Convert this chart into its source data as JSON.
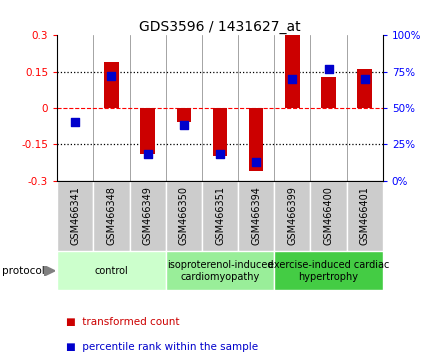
{
  "title": "GDS3596 / 1431627_at",
  "samples": [
    "GSM466341",
    "GSM466348",
    "GSM466349",
    "GSM466350",
    "GSM466351",
    "GSM466394",
    "GSM466399",
    "GSM466400",
    "GSM466401"
  ],
  "transformed_count": [
    0.0,
    0.19,
    -0.19,
    -0.06,
    -0.2,
    -0.26,
    0.3,
    0.13,
    0.16
  ],
  "percentile_rank": [
    40,
    72,
    18,
    38,
    18,
    13,
    70,
    77,
    70
  ],
  "ylim": [
    -0.3,
    0.3
  ],
  "right_ylim": [
    0,
    100
  ],
  "right_yticks": [
    0,
    25,
    50,
    75,
    100
  ],
  "right_yticklabels": [
    "0%",
    "25%",
    "50%",
    "75%",
    "100%"
  ],
  "left_yticks": [
    -0.3,
    -0.15,
    0.0,
    0.15,
    0.3
  ],
  "left_yticklabels": [
    "-0.3",
    "-0.15",
    "0",
    "0.15",
    "0.3"
  ],
  "dotted_hlines": [
    0.15,
    -0.15
  ],
  "dashed_hline": 0.0,
  "bar_color": "#cc0000",
  "dot_color": "#0000cc",
  "groups": [
    {
      "label": "control",
      "indices": [
        0,
        1,
        2
      ],
      "color": "#ccffcc"
    },
    {
      "label": "isoproterenol-induced\ncardiomyopathy",
      "indices": [
        3,
        4,
        5
      ],
      "color": "#99ee99"
    },
    {
      "label": "exercise-induced cardiac\nhypertrophy",
      "indices": [
        6,
        7,
        8
      ],
      "color": "#44cc44"
    }
  ],
  "protocol_label": "protocol",
  "bar_width": 0.4,
  "dot_size": 30,
  "title_fontsize": 10,
  "tick_fontsize": 7.5,
  "label_fontsize": 7,
  "group_fontsize": 7
}
